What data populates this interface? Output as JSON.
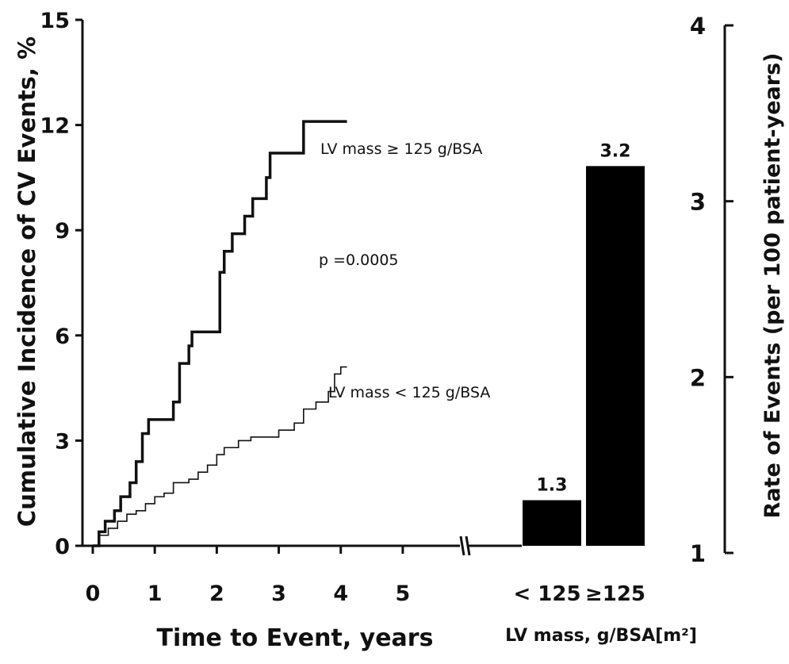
{
  "chart_data": [
    {
      "type": "line",
      "xlabel": "Time to Event, years",
      "ylabel": "Cumulative Incidence of CV Events, %",
      "xlim": [
        0,
        6.05
      ],
      "ylim": [
        0,
        15
      ],
      "xticks": [
        "0",
        "1",
        "2",
        "3",
        "4",
        "5"
      ],
      "yticks": [
        "0",
        "3",
        "6",
        "9",
        "12",
        "15"
      ],
      "annotation": "p =0.0005",
      "series": [
        {
          "name": "LV mass ≥ 125 g/BSA",
          "step": true,
          "points": [
            [
              0,
              0
            ],
            [
              0.1,
              0.4
            ],
            [
              0.2,
              0.7
            ],
            [
              0.35,
              1.0
            ],
            [
              0.45,
              1.4
            ],
            [
              0.6,
              1.8
            ],
            [
              0.7,
              2.4
            ],
            [
              0.8,
              3.2
            ],
            [
              0.9,
              3.6
            ],
            [
              1.2,
              3.6
            ],
            [
              1.3,
              4.1
            ],
            [
              1.4,
              5.2
            ],
            [
              1.55,
              5.7
            ],
            [
              1.6,
              6.1
            ],
            [
              2.0,
              6.1
            ],
            [
              2.05,
              7.8
            ],
            [
              2.12,
              8.4
            ],
            [
              2.25,
              8.9
            ],
            [
              2.45,
              9.4
            ],
            [
              2.58,
              9.9
            ],
            [
              2.8,
              10.5
            ],
            [
              2.86,
              11.2
            ],
            [
              3.3,
              11.2
            ],
            [
              3.4,
              12.1
            ],
            [
              4.1,
              12.1
            ]
          ]
        },
        {
          "name": "LV mass < 125 g/BSA",
          "step": true,
          "points": [
            [
              0,
              0
            ],
            [
              0.1,
              0.3
            ],
            [
              0.25,
              0.5
            ],
            [
              0.4,
              0.7
            ],
            [
              0.55,
              0.9
            ],
            [
              0.7,
              1.0
            ],
            [
              0.85,
              1.2
            ],
            [
              1.0,
              1.4
            ],
            [
              1.15,
              1.5
            ],
            [
              1.3,
              1.8
            ],
            [
              1.55,
              1.9
            ],
            [
              1.7,
              2.1
            ],
            [
              1.85,
              2.3
            ],
            [
              2.0,
              2.6
            ],
            [
              2.12,
              2.8
            ],
            [
              2.35,
              3.0
            ],
            [
              2.55,
              3.1
            ],
            [
              3.0,
              3.3
            ],
            [
              3.25,
              3.5
            ],
            [
              3.4,
              3.9
            ],
            [
              3.6,
              4.1
            ],
            [
              3.8,
              4.4
            ],
            [
              3.9,
              4.9
            ],
            [
              4.0,
              5.1
            ],
            [
              4.1,
              5.1
            ]
          ]
        }
      ]
    },
    {
      "type": "bar",
      "categories": [
        "< 125",
        "≥125"
      ],
      "values": [
        1.3,
        3.2
      ],
      "data_labels": [
        "1.3",
        "3.2"
      ],
      "xlabel": "LV mass, g/BSA[m²]",
      "ylabel": "Rate of Events (per 100 patient-years)",
      "ylim": [
        1,
        4
      ],
      "yticks": [
        "1",
        "2",
        "3",
        "4"
      ]
    }
  ]
}
